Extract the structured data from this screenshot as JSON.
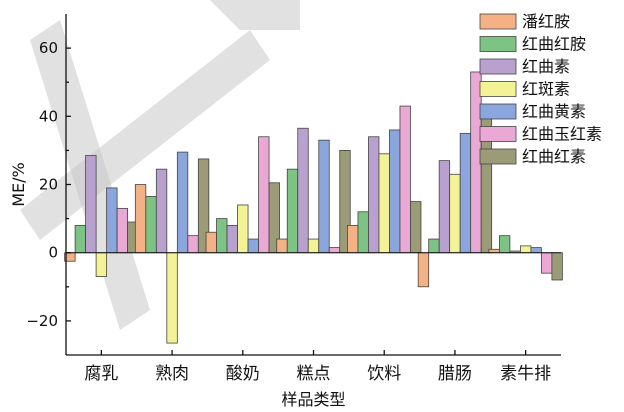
{
  "chart_data": {
    "type": "bar",
    "ylabel": "ME/%",
    "xlabel": "样品类型",
    "ylim": [
      -30,
      70
    ],
    "yticks": [
      -20,
      0,
      20,
      40,
      60
    ],
    "grid": false,
    "legend_position": "top-right",
    "categories": [
      "腐乳",
      "熟肉",
      "酸奶",
      "糕点",
      "饮料",
      "腊肠",
      "素牛排"
    ],
    "series": [
      {
        "name": "潘红胺",
        "color": "#f4b183",
        "values": [
          -2.5,
          20,
          6,
          4,
          8,
          -10,
          1
        ]
      },
      {
        "name": "红曲红胺",
        "color": "#7dc383",
        "values": [
          8,
          16.5,
          10,
          24.5,
          12,
          4,
          5
        ]
      },
      {
        "name": "红曲素",
        "color": "#b9a1cf",
        "values": [
          28.5,
          24.5,
          8,
          36.5,
          34,
          27,
          0.5
        ]
      },
      {
        "name": "红斑素",
        "color": "#f3f395",
        "values": [
          -7,
          -26.5,
          14,
          4,
          29,
          23,
          2
        ]
      },
      {
        "name": "红曲黄素",
        "color": "#8aa6dc",
        "values": [
          19,
          29.5,
          4,
          33,
          36,
          35,
          1.5
        ]
      },
      {
        "name": "红曲玉红素",
        "color": "#eaa8d4",
        "values": [
          13,
          5,
          34,
          1.5,
          43,
          53,
          -6
        ]
      },
      {
        "name": "红曲红素",
        "color": "#9b9b78",
        "values": [
          9,
          27.5,
          20.5,
          30,
          15,
          39.5,
          -8
        ]
      }
    ]
  }
}
